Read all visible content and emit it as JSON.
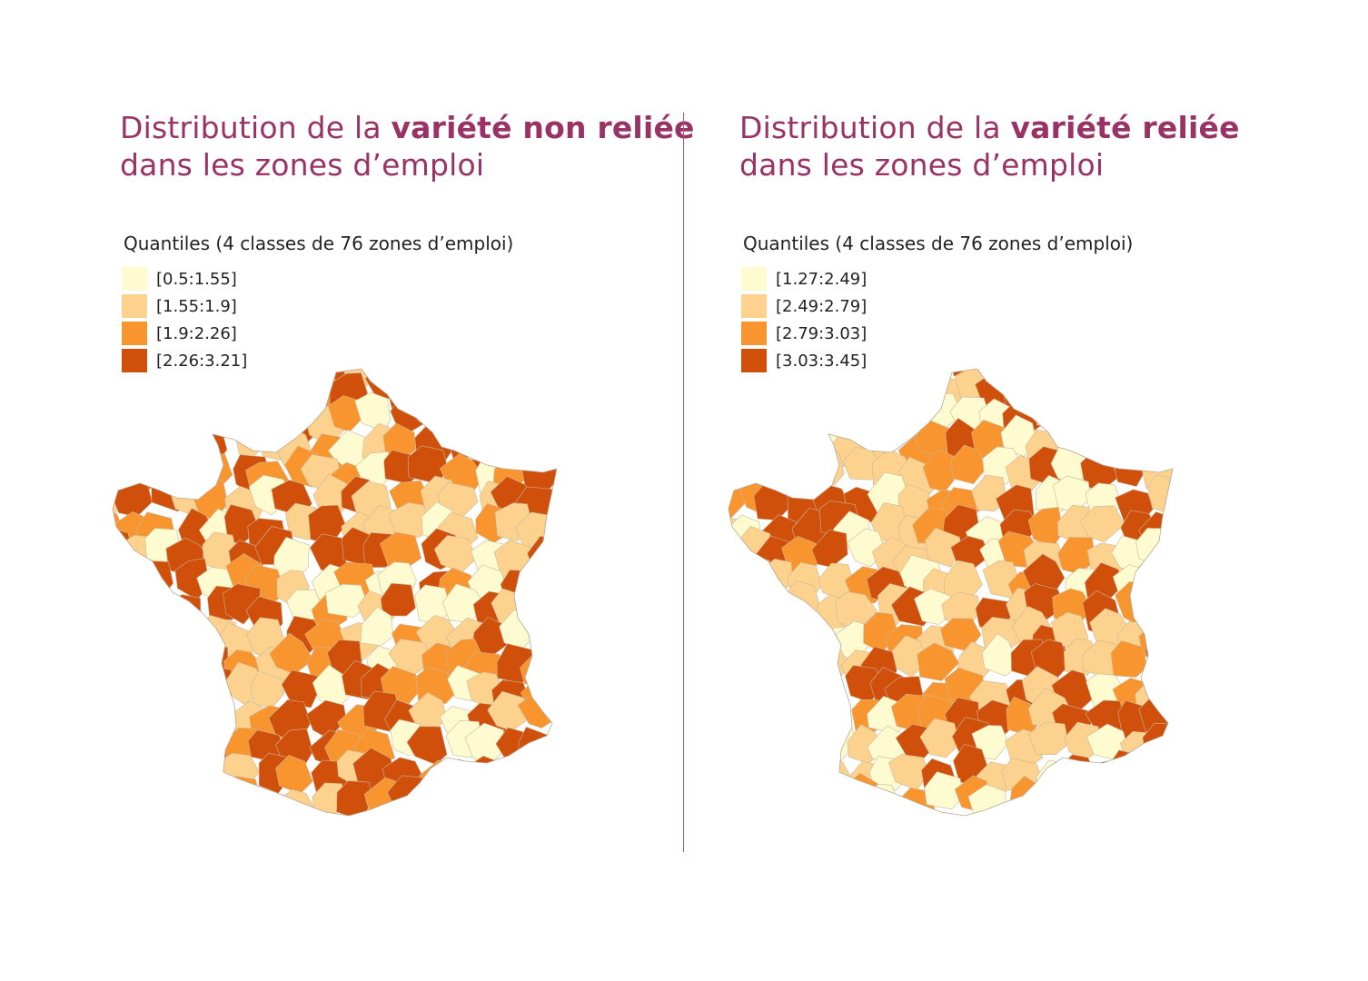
{
  "colors": {
    "c1": "#fffbd0",
    "c2": "#fdd28e",
    "c3": "#f9952e",
    "c4": "#cf4f0b",
    "title": "#993366"
  },
  "panels": [
    {
      "title_pre": "Distribution de la ",
      "title_bold": "variété non reliée",
      "title_line2": "dans les zones d’emploi",
      "legend_title": "Quantiles (4 classes de 76 zones d’emploi)",
      "legend": [
        {
          "label": "[0.5:1.55]",
          "color": "#fffbd0"
        },
        {
          "label": "[1.55:1.9]",
          "color": "#fdd28e"
        },
        {
          "label": "[1.9:2.26]",
          "color": "#f9952e"
        },
        {
          "label": "[2.26:3.21]",
          "color": "#cf4f0b"
        }
      ]
    },
    {
      "title_pre": "Distribution de la ",
      "title_bold": "variété reliée",
      "title_line2": "dans les zones d’emploi",
      "legend_title": "Quantiles (4 classes de 76 zones d’emploi)",
      "legend": [
        {
          "label": "[1.27:2.49]",
          "color": "#fffbd0"
        },
        {
          "label": "[2.49:2.79]",
          "color": "#fdd28e"
        },
        {
          "label": "[2.79:3.03]",
          "color": "#f9952e"
        },
        {
          "label": "[3.03:3.45]",
          "color": "#cf4f0b"
        }
      ]
    }
  ]
}
